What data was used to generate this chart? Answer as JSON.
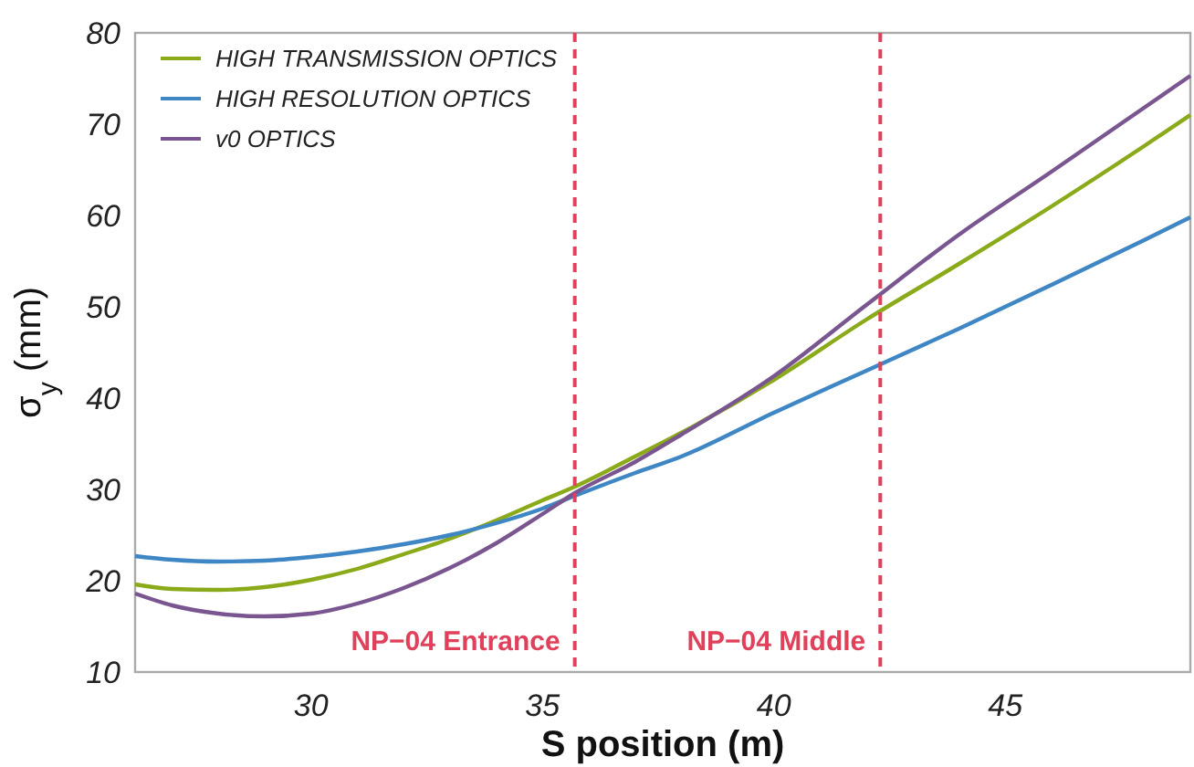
{
  "chart_data": {
    "type": "line",
    "xlabel": "S position (m)",
    "ylabel": "σ$_{y}$ (mm)",
    "xlim": [
      26.2,
      49
    ],
    "xticks": [
      30,
      35,
      40,
      45
    ],
    "ylim": [
      10,
      80
    ],
    "yticks": [
      10,
      20,
      30,
      40,
      50,
      60,
      70,
      80
    ],
    "x": [
      26.2,
      27,
      28,
      29,
      30,
      31,
      32,
      33,
      34,
      35,
      35.7,
      37,
      38,
      40,
      42,
      44,
      46,
      48,
      49
    ],
    "series": [
      {
        "name": "HIGH TRANSMISSION OPTICS",
        "color": "#8aaa1a",
        "values": [
          19.6,
          19.1,
          19.0,
          19.3,
          20.1,
          21.3,
          22.9,
          24.6,
          26.6,
          28.8,
          30.3,
          33.6,
          36.2,
          42.0,
          48.6,
          54.7,
          61.0,
          67.6,
          71.0
        ]
      },
      {
        "name": "HIGH RESOLUTION OPTICS",
        "color": "#3f86c4",
        "values": [
          22.7,
          22.3,
          22.1,
          22.2,
          22.6,
          23.2,
          24.0,
          25.0,
          26.3,
          27.9,
          29.3,
          31.8,
          33.6,
          38.4,
          43.0,
          47.6,
          52.4,
          57.3,
          59.8
        ]
      },
      {
        "name": "v0 OPTICS",
        "color": "#7a5690",
        "values": [
          18.6,
          17.3,
          16.4,
          16.1,
          16.4,
          17.5,
          19.2,
          21.4,
          24.1,
          27.3,
          29.6,
          33.0,
          36.0,
          42.4,
          50.2,
          57.9,
          64.8,
          71.8,
          75.3
        ]
      }
    ],
    "ref_lines": [
      {
        "axis": "x",
        "value": 35.7,
        "label": "NP−04 Entrance",
        "color": "#e0405a",
        "line_style": "dashed"
      },
      {
        "axis": "x",
        "value": 42.3,
        "label": "NP−04 Middle",
        "color": "#e0405a",
        "line_style": "dashed"
      }
    ],
    "legend": "top left",
    "grid": false,
    "line_style": "solid",
    "marker": "none"
  }
}
